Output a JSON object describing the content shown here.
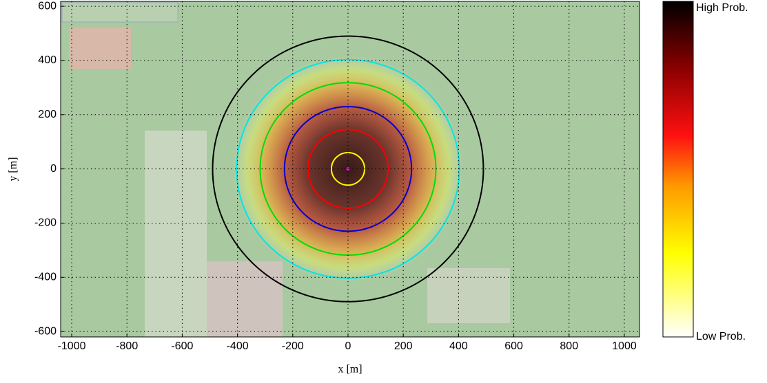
{
  "chart_data": {
    "type": "heatmap",
    "xlabel": "x [m]",
    "ylabel": "y [m]",
    "xlim": [
      -1040,
      1055
    ],
    "ylim": [
      -620,
      618
    ],
    "xticks": [
      -1000,
      -800,
      -600,
      -400,
      -200,
      0,
      200,
      400,
      600,
      800,
      1000
    ],
    "yticks": [
      -600,
      -400,
      -200,
      0,
      200,
      400,
      600
    ],
    "grid": true,
    "center": {
      "x": 0,
      "y": 0,
      "color": "#ff00ff"
    },
    "circles": [
      {
        "radius": 60,
        "color": "#ffff00"
      },
      {
        "radius": 145,
        "color": "#ff0000"
      },
      {
        "radius": 230,
        "color": "#0000cc"
      },
      {
        "radius": 318,
        "color": "#00dd00"
      },
      {
        "radius": 403,
        "color": "#00e5e5"
      },
      {
        "radius": 490,
        "color": "#000000"
      }
    ],
    "colorbar": {
      "high_label": "High Prob.",
      "low_label": "Low Prob."
    }
  }
}
